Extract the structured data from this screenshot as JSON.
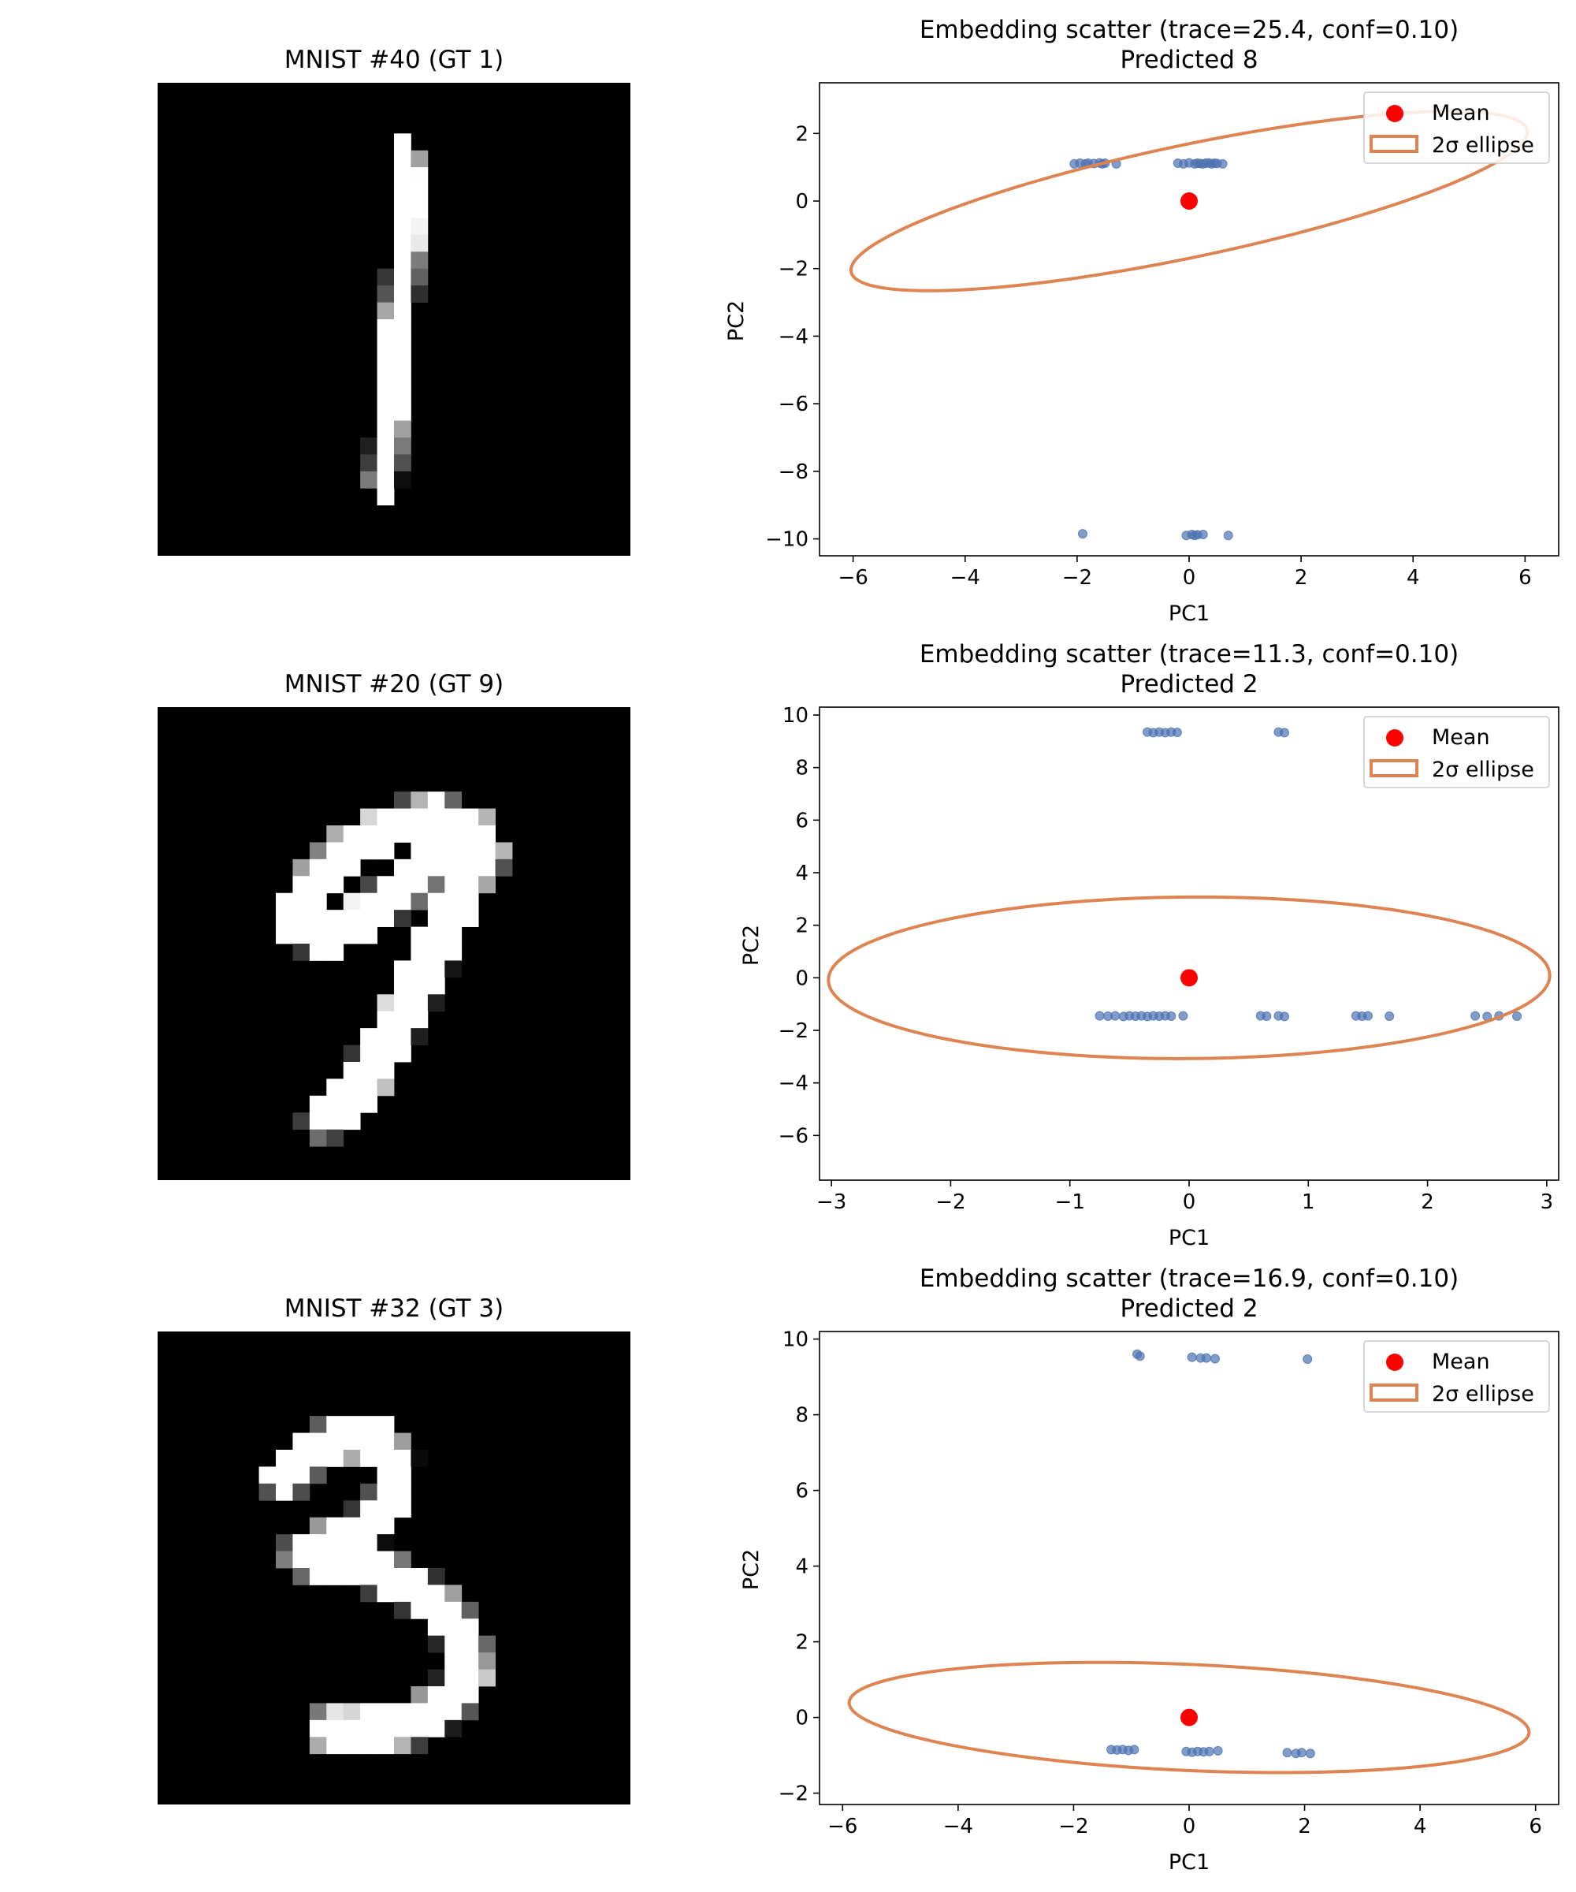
{
  "panels": [
    {
      "image": {
        "title": "MNIST #40 (GT 1)",
        "digit": "1"
      },
      "chart_data": {
        "type": "scatter",
        "title": "Embedding scatter (trace=25.4, conf=0.10)",
        "subtitle": "Predicted 8",
        "xlabel": "PC1",
        "ylabel": "PC2",
        "xlim": [
          -6.6,
          6.6
        ],
        "ylim": [
          -10.5,
          3.5
        ],
        "xticks": [
          -6,
          -4,
          -2,
          0,
          2,
          4,
          6
        ],
        "yticks": [
          -10,
          -8,
          -6,
          -4,
          -2,
          0,
          2
        ],
        "grid": false,
        "legend_position": "top-right",
        "legend": [
          "Mean",
          "2σ ellipse"
        ],
        "mean": [
          0,
          0
        ],
        "ellipse": {
          "center": [
            0,
            0
          ],
          "width": 12.8,
          "height": 3.2,
          "angle_deg": 20
        },
        "points": [
          [
            -2.05,
            1.1
          ],
          [
            -1.95,
            1.12
          ],
          [
            -1.85,
            1.1
          ],
          [
            -1.8,
            1.12
          ],
          [
            -1.7,
            1.11
          ],
          [
            -1.6,
            1.13
          ],
          [
            -1.55,
            1.1
          ],
          [
            -1.5,
            1.12
          ],
          [
            -1.3,
            1.1
          ],
          [
            -0.2,
            1.12
          ],
          [
            -0.1,
            1.1
          ],
          [
            0.0,
            1.13
          ],
          [
            0.1,
            1.1
          ],
          [
            0.15,
            1.12
          ],
          [
            0.2,
            1.11
          ],
          [
            0.25,
            1.1
          ],
          [
            0.3,
            1.12
          ],
          [
            0.35,
            1.13
          ],
          [
            0.4,
            1.1
          ],
          [
            0.45,
            1.12
          ],
          [
            0.5,
            1.11
          ],
          [
            0.6,
            1.1
          ],
          [
            -1.9,
            -9.85
          ],
          [
            -0.05,
            -9.9
          ],
          [
            0.05,
            -9.87
          ],
          [
            0.1,
            -9.9
          ],
          [
            0.15,
            -9.88
          ],
          [
            0.25,
            -9.87
          ],
          [
            0.7,
            -9.9
          ]
        ]
      }
    },
    {
      "image": {
        "title": "MNIST #20 (GT 9)",
        "digit": "9"
      },
      "chart_data": {
        "type": "scatter",
        "title": "Embedding scatter (trace=11.3, conf=0.10)",
        "subtitle": "Predicted 2",
        "xlabel": "PC1",
        "ylabel": "PC2",
        "xlim": [
          -3.1,
          3.1
        ],
        "ylim": [
          -7.7,
          10.3
        ],
        "xticks": [
          -3,
          -2,
          -1,
          0,
          1,
          2,
          3
        ],
        "yticks": [
          -6,
          -4,
          -2,
          0,
          2,
          4,
          6,
          8,
          10
        ],
        "grid": false,
        "legend_position": "top-right",
        "legend": [
          "Mean",
          "2σ ellipse"
        ],
        "mean": [
          0,
          0
        ],
        "ellipse": {
          "center": [
            0,
            0
          ],
          "width": 6.2,
          "height": 6.0,
          "angle_deg": 60
        },
        "points": [
          [
            -0.35,
            9.35
          ],
          [
            -0.3,
            9.33
          ],
          [
            -0.25,
            9.35
          ],
          [
            -0.2,
            9.33
          ],
          [
            -0.15,
            9.35
          ],
          [
            -0.1,
            9.34
          ],
          [
            0.75,
            9.35
          ],
          [
            0.8,
            9.33
          ],
          [
            -0.75,
            -1.45
          ],
          [
            -0.68,
            -1.46
          ],
          [
            -0.62,
            -1.45
          ],
          [
            -0.55,
            -1.47
          ],
          [
            -0.5,
            -1.45
          ],
          [
            -0.45,
            -1.46
          ],
          [
            -0.4,
            -1.45
          ],
          [
            -0.35,
            -1.47
          ],
          [
            -0.3,
            -1.45
          ],
          [
            -0.25,
            -1.46
          ],
          [
            -0.2,
            -1.45
          ],
          [
            -0.15,
            -1.46
          ],
          [
            -0.05,
            -1.45
          ],
          [
            0.6,
            -1.45
          ],
          [
            0.65,
            -1.46
          ],
          [
            0.75,
            -1.45
          ],
          [
            0.8,
            -1.47
          ],
          [
            1.4,
            -1.45
          ],
          [
            1.45,
            -1.46
          ],
          [
            1.5,
            -1.45
          ],
          [
            1.68,
            -1.46
          ],
          [
            2.4,
            -1.45
          ],
          [
            2.5,
            -1.47
          ],
          [
            2.6,
            -1.45
          ],
          [
            2.75,
            -1.46
          ]
        ]
      }
    },
    {
      "image": {
        "title": "MNIST #32 (GT 3)",
        "digit": "3"
      },
      "chart_data": {
        "type": "scatter",
        "title": "Embedding scatter (trace=16.9, conf=0.10)",
        "subtitle": "Predicted 2",
        "xlabel": "PC1",
        "ylabel": "PC2",
        "xlim": [
          -6.4,
          6.4
        ],
        "ylim": [
          -2.3,
          10.2
        ],
        "xticks": [
          -6,
          -4,
          -2,
          0,
          2,
          4,
          6
        ],
        "yticks": [
          -2,
          0,
          2,
          4,
          6,
          8,
          10
        ],
        "grid": false,
        "legend_position": "top-right",
        "legend": [
          "Mean",
          "2σ ellipse"
        ],
        "mean": [
          0,
          0
        ],
        "ellipse": {
          "center": [
            0,
            0
          ],
          "width": 11.8,
          "height": 2.8,
          "angle_deg": -4
        },
        "points": [
          [
            -0.9,
            9.6
          ],
          [
            -0.85,
            9.55
          ],
          [
            0.05,
            9.52
          ],
          [
            0.2,
            9.5
          ],
          [
            0.3,
            9.5
          ],
          [
            0.45,
            9.48
          ],
          [
            2.05,
            9.47
          ],
          [
            -1.35,
            -0.85
          ],
          [
            -1.25,
            -0.86
          ],
          [
            -1.15,
            -0.85
          ],
          [
            -1.05,
            -0.87
          ],
          [
            -0.95,
            -0.85
          ],
          [
            -0.05,
            -0.9
          ],
          [
            0.05,
            -0.92
          ],
          [
            0.15,
            -0.9
          ],
          [
            0.25,
            -0.91
          ],
          [
            0.35,
            -0.9
          ],
          [
            0.5,
            -0.88
          ],
          [
            1.7,
            -0.93
          ],
          [
            1.85,
            -0.95
          ],
          [
            1.95,
            -0.93
          ],
          [
            2.1,
            -0.95
          ]
        ]
      }
    }
  ],
  "colors": {
    "points": "#4c72b0",
    "mean": "#ff0000",
    "ellipse": "#dd8452",
    "image_bg": "#000000"
  }
}
